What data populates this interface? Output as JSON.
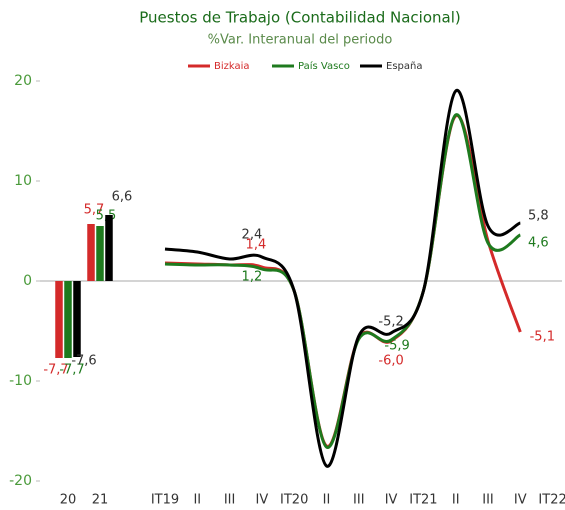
{
  "chart_data": [
    {
      "type": "bar",
      "title": "Puestos de Trabajo (Contabilidad Nacional)",
      "subtitle": "%Var. Interanual del periodo",
      "categories": [
        "20",
        "21"
      ],
      "series": [
        {
          "name": "Bizkaia",
          "color": "#d42a2a",
          "values": [
            -7.7,
            5.7
          ],
          "value_labels": [
            "-7,7",
            "5,7"
          ]
        },
        {
          "name": "País Vasco",
          "color": "#1e7a1e",
          "values": [
            -7.7,
            5.5
          ],
          "value_labels": [
            "-7,7",
            "5,5"
          ]
        },
        {
          "name": "España",
          "color": "#000000",
          "values": [
            -7.6,
            6.6
          ],
          "value_labels": [
            "-7,6",
            "6,6"
          ]
        }
      ],
      "ylim": [
        -20,
        20
      ],
      "yticks": [
        -20,
        -10,
        0,
        10,
        20
      ]
    },
    {
      "type": "line",
      "categories": [
        "IT19",
        "II",
        "III",
        "IV",
        "IT20",
        "II",
        "III",
        "IV",
        "IT21",
        "II",
        "III",
        "IV",
        "IT22"
      ],
      "series": [
        {
          "name": "Bizkaia",
          "color": "#d42a2a",
          "values": [
            1.8,
            1.7,
            1.6,
            1.4,
            -1.0,
            -16.5,
            -5.7,
            -6.0,
            -1.0,
            16.5,
            4.0,
            -5.1,
            null
          ],
          "value_labels": [
            null,
            null,
            null,
            "1,4",
            null,
            null,
            null,
            "-6,0",
            null,
            null,
            null,
            "-5,1",
            null
          ]
        },
        {
          "name": "País Vasco",
          "color": "#1e7a1e",
          "values": [
            1.7,
            1.6,
            1.6,
            1.2,
            -1.0,
            -16.6,
            -5.8,
            -5.9,
            -1.0,
            16.6,
            3.8,
            4.6,
            null
          ],
          "value_labels": [
            null,
            null,
            null,
            "1,2",
            null,
            null,
            null,
            "-5,9",
            null,
            null,
            null,
            "4,6",
            null
          ]
        },
        {
          "name": "España",
          "color": "#000000",
          "values": [
            3.2,
            2.9,
            2.2,
            2.4,
            -1.0,
            -18.5,
            -5.5,
            -5.2,
            -1.0,
            19.0,
            5.5,
            5.8,
            null
          ],
          "value_labels": [
            null,
            null,
            null,
            "2,4",
            null,
            null,
            null,
            "-5,2",
            null,
            null,
            null,
            "5,8",
            null
          ]
        }
      ]
    }
  ]
}
